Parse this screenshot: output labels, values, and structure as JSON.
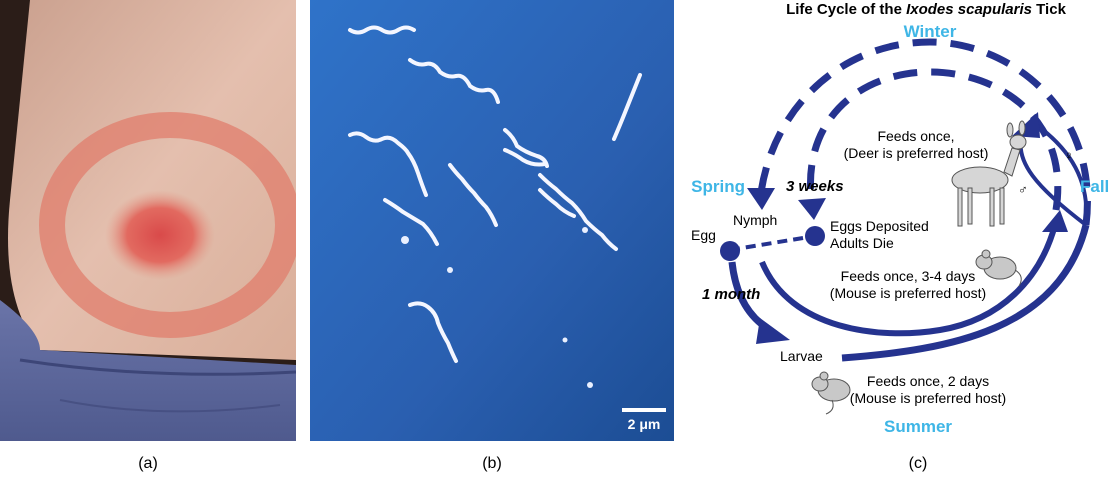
{
  "panels": {
    "a": {
      "caption": "(a)"
    },
    "b": {
      "caption": "(b)",
      "scale_label": "2 μm"
    },
    "c": {
      "caption": "(c)"
    }
  },
  "diagram": {
    "title_prefix": "Life Cycle of the ",
    "title_italic": "Ixodes scapularis",
    "title_suffix": " Tick",
    "seasons": {
      "winter": "Winter",
      "spring": "Spring",
      "fall": "Fall",
      "summer": "Summer"
    },
    "season_color": "#3fb6e6",
    "arrow_color": "#25338f",
    "durations": {
      "three_weeks": "3 weeks",
      "one_month": "1 month"
    },
    "stages": {
      "egg": "Egg",
      "nymph": "Nymph",
      "larvae": "Larvae"
    },
    "eggs_deposited": "Eggs Deposited",
    "adults_die": "Adults Die",
    "deer_feed": {
      "line1": "Feeds once,",
      "line2": "(Deer is preferred host)"
    },
    "nymph_feed": {
      "line1": "Feeds once, 3-4 days",
      "line2": "(Mouse is preferred host)"
    },
    "larvae_feed": {
      "line1": "Feeds once, 2 days",
      "line2": "(Mouse is preferred host)"
    },
    "female_symbol": "♀",
    "male_symbol": "♂",
    "icons": [
      "deer-icon",
      "mouse-icon"
    ]
  }
}
